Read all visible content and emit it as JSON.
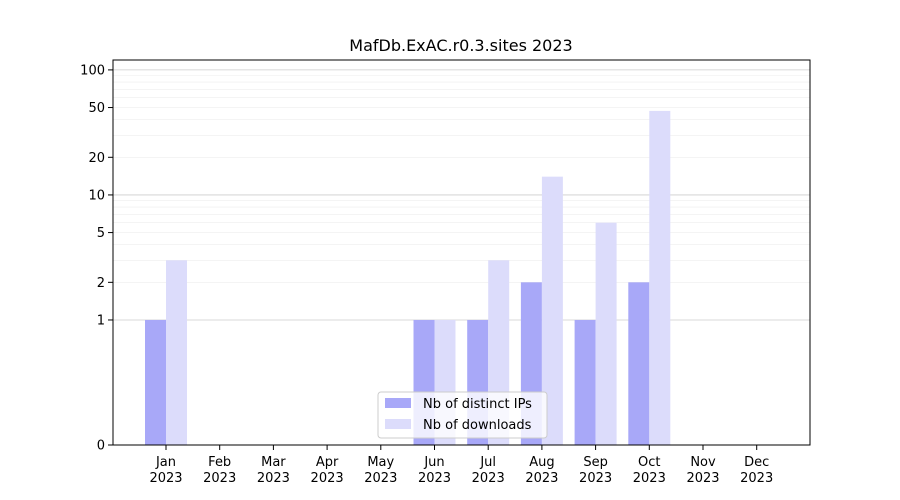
{
  "chart_data": {
    "type": "bar",
    "title": "MafDb.ExAC.r0.3.sites 2023",
    "xlabel": "",
    "ylabel": "",
    "yscale": "symlog",
    "ylim": [
      0,
      120
    ],
    "yticks": [
      "0",
      "1",
      "2",
      "5",
      "10",
      "20",
      "50",
      "100"
    ],
    "grid": "horizontal",
    "legend_position": "lower-center",
    "categories": [
      {
        "month": "Jan",
        "year": "2023"
      },
      {
        "month": "Feb",
        "year": "2023"
      },
      {
        "month": "Mar",
        "year": "2023"
      },
      {
        "month": "Apr",
        "year": "2023"
      },
      {
        "month": "May",
        "year": "2023"
      },
      {
        "month": "Jun",
        "year": "2023"
      },
      {
        "month": "Jul",
        "year": "2023"
      },
      {
        "month": "Aug",
        "year": "2023"
      },
      {
        "month": "Sep",
        "year": "2023"
      },
      {
        "month": "Oct",
        "year": "2023"
      },
      {
        "month": "Nov",
        "year": "2023"
      },
      {
        "month": "Dec",
        "year": "2023"
      }
    ],
    "series": [
      {
        "name": "Nb of distinct IPs",
        "color": "#a8a8f8",
        "values": [
          1,
          0,
          0,
          0,
          0,
          1,
          1,
          2,
          1,
          2,
          0,
          0
        ]
      },
      {
        "name": "Nb of downloads",
        "color": "#dcdcfb",
        "values": [
          3,
          0,
          0,
          0,
          0,
          1,
          3,
          14,
          6,
          47,
          0,
          0
        ]
      }
    ]
  }
}
